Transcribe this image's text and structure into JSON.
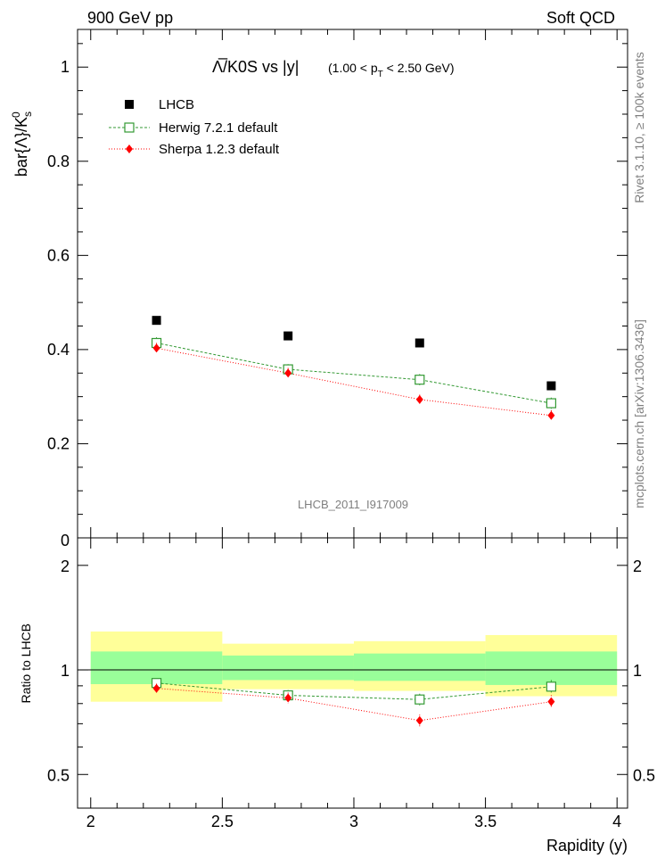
{
  "header": {
    "left": "900 GeV pp",
    "right": "Soft QCD"
  },
  "side_text": {
    "rivet": "Rivet 3.1.10, ≥ 100k events",
    "mcplots": "mcplots.cern.ch [arXiv:1306.3436]"
  },
  "chart_data": [
    {
      "type": "scatter",
      "panel": "main",
      "title_main": "Λ̅/K0S vs |y|",
      "title_sub": "(1.00 < p",
      "title_sub_sub": "T",
      "title_sub_end": " < 2.50 GeV)",
      "analysis_label": "LHCB_2011_I917009",
      "ylabel": "bar{Λ}/K",
      "ylabel_sup": "0",
      "ylabel_sub": "s",
      "xlim": [
        1.95,
        4.04
      ],
      "ylim": [
        0,
        1.08
      ],
      "yticks_major": [
        0.2,
        0.4,
        0.6,
        0.8,
        1
      ],
      "ytick_labels": [
        "0.2",
        "0.4",
        "0.6",
        "0.8",
        "1"
      ],
      "bottom_cut_label": "0",
      "x": [
        2.25,
        2.75,
        3.25,
        3.75
      ],
      "x_edges": [
        [
          2.0,
          2.5
        ],
        [
          2.5,
          3.0
        ],
        [
          3.0,
          3.5
        ],
        [
          3.5,
          4.0
        ]
      ],
      "series": [
        {
          "name": "LHCB",
          "style": "data",
          "color": "#000000",
          "values": [
            0.462,
            0.429,
            0.414,
            0.323
          ],
          "stat_err": [
            0.023,
            0.02,
            0.019,
            0.019
          ],
          "total_err": [
            0.05,
            0.045,
            0.045,
            0.05
          ]
        },
        {
          "name": "Herwig 7.2.1 default",
          "style": "herwig",
          "color": "#339933",
          "values": [
            0.414,
            0.358,
            0.336,
            0.286
          ],
          "errors": [
            0.012,
            0.011,
            0.012,
            0.012
          ]
        },
        {
          "name": "Sherpa 1.2.3 default",
          "style": "sherpa",
          "color": "#ff0000",
          "values": [
            0.403,
            0.35,
            0.294,
            0.26
          ],
          "errors": [
            0.011,
            0.011,
            0.01,
            0.011
          ]
        }
      ]
    },
    {
      "type": "scatter",
      "panel": "ratio",
      "ylabel": "Ratio to LHCB",
      "xlabel": "Rapidity (y)",
      "xlim": [
        1.95,
        4.04
      ],
      "xticks_major": [
        2,
        2.5,
        3,
        3.5,
        4
      ],
      "xtick_labels": [
        "2",
        "2.5",
        "3",
        "3.5",
        "4"
      ],
      "ylim_log": [
        0.4,
        2.4
      ],
      "yticks_major": [
        0.5,
        1,
        2
      ],
      "ytick_labels": [
        "0.5",
        "1",
        "2"
      ],
      "x": [
        2.25,
        2.75,
        3.25,
        3.75
      ],
      "band_inner": [
        [
          0.91,
          1.13
        ],
        [
          0.935,
          1.1
        ],
        [
          0.93,
          1.115
        ],
        [
          0.905,
          1.13
        ]
      ],
      "band_outer": [
        [
          0.81,
          1.29
        ],
        [
          0.88,
          1.19
        ],
        [
          0.87,
          1.21
        ],
        [
          0.84,
          1.26
        ]
      ],
      "series": [
        {
          "name": "Herwig 7.2.1 default",
          "style": "herwig",
          "color": "#339933",
          "values": [
            0.917,
            0.845,
            0.822,
            0.895
          ],
          "errors": [
            0.028,
            0.03,
            0.032,
            0.04
          ]
        },
        {
          "name": "Sherpa 1.2.3 default",
          "style": "sherpa",
          "color": "#ff0000",
          "values": [
            0.885,
            0.83,
            0.715,
            0.81
          ],
          "errors": [
            0.028,
            0.03,
            0.028,
            0.036
          ]
        }
      ]
    }
  ]
}
